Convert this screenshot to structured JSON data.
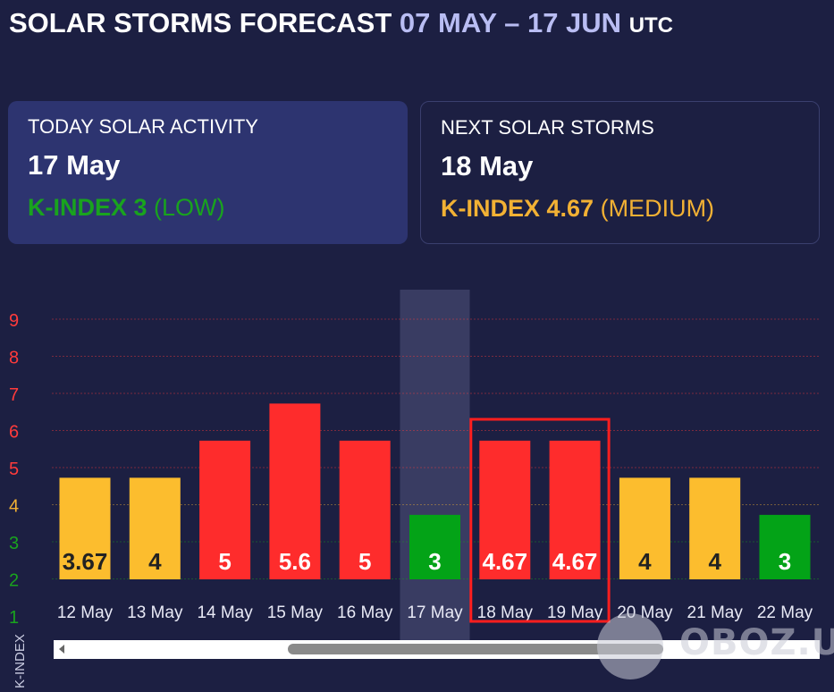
{
  "header": {
    "title_main": "SOLAR STORMS FORECAST",
    "title_range": "07 MAY – 17 JUN",
    "title_tz": "UTC"
  },
  "today_card": {
    "heading": "TODAY SOLAR ACTIVITY",
    "date": "17 May",
    "kindex_label": "K-INDEX 3",
    "level": "(LOW)",
    "color": "#19a31e"
  },
  "next_card": {
    "heading": "NEXT SOLAR STORMS",
    "date": "18 May",
    "kindex_label": "K-INDEX 4.67",
    "level": "(MEDIUM)",
    "color": "#f2b134"
  },
  "chart_data": {
    "type": "bar",
    "ylabel": "K-INDEX",
    "yticks": [
      "1",
      "2",
      "3",
      "4",
      "5",
      "6",
      "7",
      "8",
      "9"
    ],
    "ylim": [
      1,
      9
    ],
    "grid": true,
    "categories": [
      "12 May",
      "13 May",
      "14 May",
      "15 May",
      "16 May",
      "17 May",
      "18 May",
      "19 May",
      "20 May",
      "21 May",
      "22 May"
    ],
    "values": [
      3.67,
      4,
      5,
      5.6,
      5,
      3,
      4.67,
      4.67,
      4,
      4,
      3
    ],
    "value_labels": [
      "3.67",
      "4",
      "5",
      "5.6",
      "5",
      "3",
      "4.67",
      "4.67",
      "4",
      "4",
      "3"
    ],
    "bar_levels": [
      4,
      4,
      5,
      6,
      5,
      3,
      5,
      5,
      4,
      4,
      3
    ],
    "bar_colors": [
      "#fcbd2e",
      "#fcbd2e",
      "#fe2c2c",
      "#fe2c2c",
      "#fe2c2c",
      "#03a317",
      "#fe2c2c",
      "#fe2c2c",
      "#fcbd2e",
      "#fcbd2e",
      "#03a317"
    ],
    "label_colors": [
      "#222222",
      "#222222",
      "#ffffff",
      "#ffffff",
      "#ffffff",
      "#ffffff",
      "#ffffff",
      "#ffffff",
      "#222222",
      "#222222",
      "#ffffff"
    ],
    "tick_colors": [
      "#19a31e",
      "#19a31e",
      "#19a31e",
      "#f2b134",
      "#ff3b3b",
      "#ff3b3b",
      "#ff3b3b",
      "#ff3b3b",
      "#ff3b3b"
    ],
    "highlight_today": "17 May",
    "highlight_box": [
      "18 May",
      "19 May"
    ]
  },
  "watermark": {
    "text": "OBOZ.UA"
  }
}
